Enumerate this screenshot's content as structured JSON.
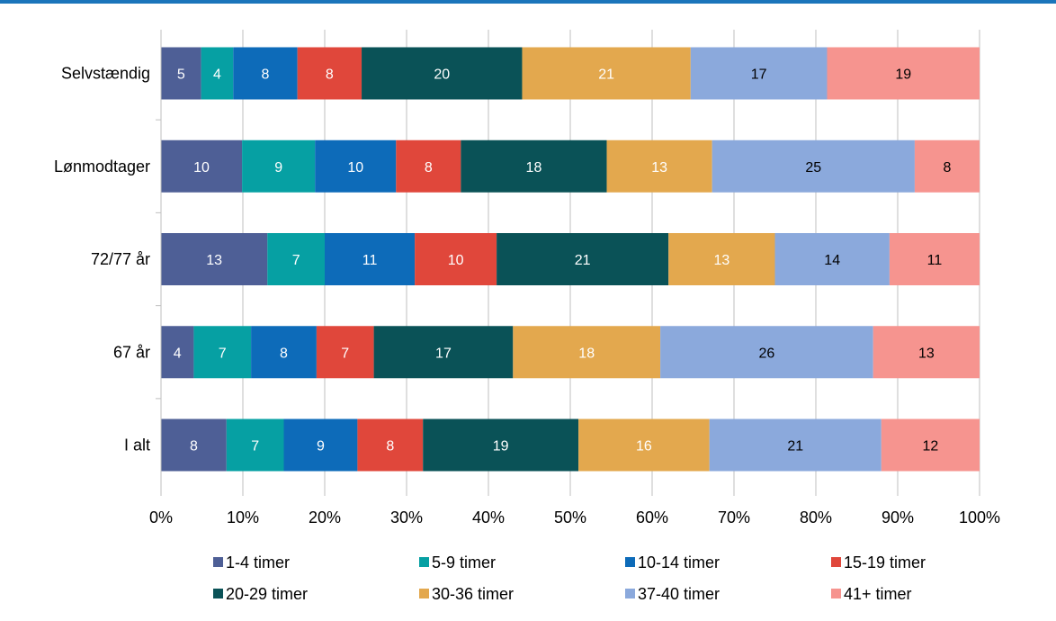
{
  "chart_data": {
    "type": "bar",
    "orientation": "horizontal",
    "stacked": "percent",
    "title": "",
    "xlabel": "",
    "ylabel": "",
    "xlim": [
      0,
      100
    ],
    "x_ticks": [
      "0%",
      "10%",
      "20%",
      "30%",
      "40%",
      "50%",
      "60%",
      "70%",
      "80%",
      "90%",
      "100%"
    ],
    "grid": "vertical",
    "legend_position": "bottom",
    "categories": [
      "Selvstændig",
      "Lønmodtager",
      "72/77 år",
      "67 år",
      "I alt"
    ],
    "series": [
      {
        "name": "1-4 timer",
        "color": "#4e5f96",
        "label_color": "#ffffff",
        "values": [
          5,
          10,
          13,
          4,
          8
        ]
      },
      {
        "name": "5-9 timer",
        "color": "#06a0a3",
        "label_color": "#ffffff",
        "values": [
          4,
          9,
          7,
          7,
          7
        ]
      },
      {
        "name": "10-14 timer",
        "color": "#0d6bb9",
        "label_color": "#ffffff",
        "values": [
          8,
          10,
          11,
          8,
          9
        ]
      },
      {
        "name": "15-19 timer",
        "color": "#e0473b",
        "label_color": "#ffffff",
        "values": [
          8,
          8,
          10,
          7,
          8
        ]
      },
      {
        "name": "20-29 timer",
        "color": "#0a5257",
        "label_color": "#ffffff",
        "values": [
          20,
          18,
          21,
          17,
          19
        ]
      },
      {
        "name": "30-36 timer",
        "color": "#e3a84e",
        "label_color": "#ffffff",
        "values": [
          21,
          13,
          13,
          18,
          16
        ]
      },
      {
        "name": "37-40 timer",
        "color": "#8ba9dc",
        "label_color": "#000000",
        "values": [
          17,
          25,
          14,
          26,
          21
        ]
      },
      {
        "name": "41+ timer",
        "color": "#f6948f",
        "label_color": "#000000",
        "values": [
          19,
          8,
          11,
          13,
          12
        ]
      }
    ]
  }
}
